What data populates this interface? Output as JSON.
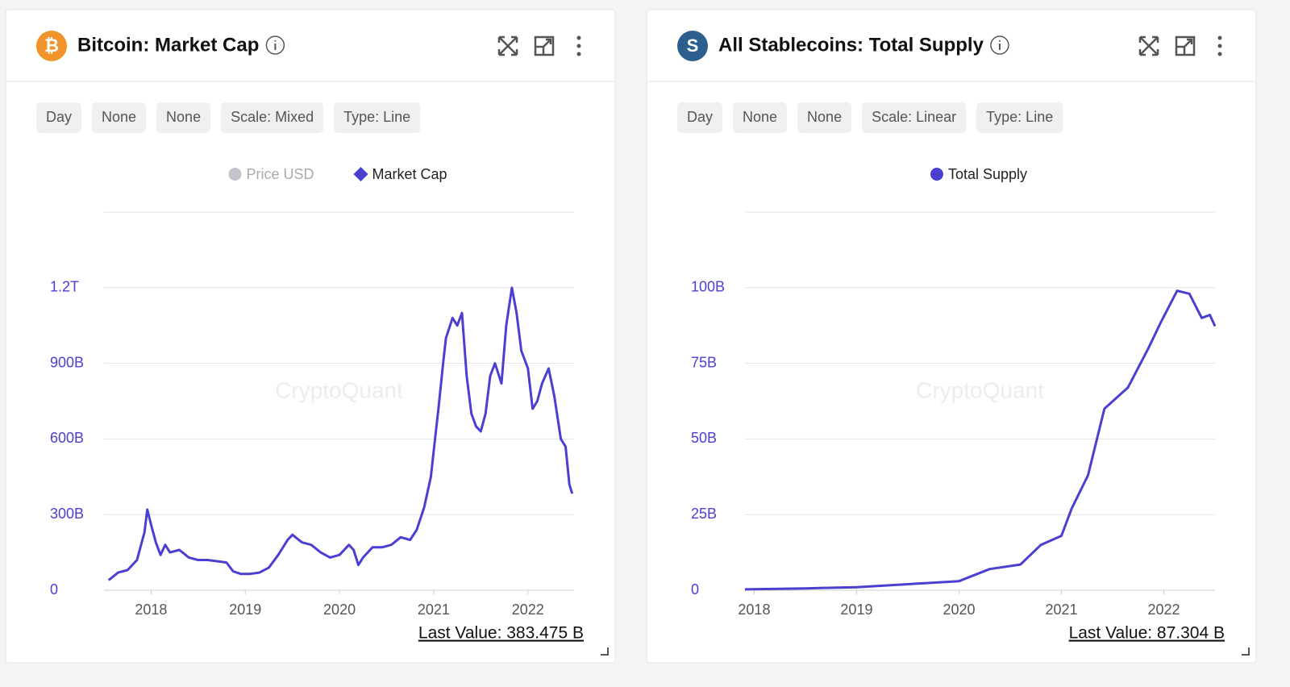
{
  "chart_data": [
    {
      "type": "line",
      "title": "Bitcoin: Market Cap",
      "icon": "₿",
      "icon_color": "#f0932b",
      "controls": [
        "Day",
        "None",
        "None",
        "Scale: Mixed",
        "Type: Line"
      ],
      "watermark": "CryptoQuant",
      "last_value": "Last Value: 383.475 B",
      "x": [
        2017.55,
        2017.65,
        2017.75,
        2017.85,
        2017.93,
        2017.96,
        2018.0,
        2018.05,
        2018.1,
        2018.15,
        2018.2,
        2018.3,
        2018.4,
        2018.5,
        2018.6,
        2018.7,
        2018.8,
        2018.87,
        2018.95,
        2019.05,
        2019.15,
        2019.25,
        2019.35,
        2019.45,
        2019.5,
        2019.6,
        2019.7,
        2019.8,
        2019.9,
        2020.0,
        2020.1,
        2020.15,
        2020.2,
        2020.25,
        2020.35,
        2020.45,
        2020.55,
        2020.65,
        2020.75,
        2020.82,
        2020.9,
        2020.97,
        2021.02,
        2021.05,
        2021.1,
        2021.13,
        2021.2,
        2021.25,
        2021.3,
        2021.35,
        2021.4,
        2021.45,
        2021.5,
        2021.55,
        2021.6,
        2021.65,
        2021.72,
        2021.77,
        2021.83,
        2021.88,
        2021.93,
        2022.0,
        2022.05,
        2022.1,
        2022.15,
        2022.22,
        2022.28,
        2022.35,
        2022.4,
        2022.44,
        2022.47
      ],
      "series": [
        {
          "name": "Price USD",
          "color": "#c4c4cc",
          "marker": "circle"
        },
        {
          "name": "Market Cap",
          "color": "#4b3fd1",
          "marker": "diamond",
          "values": [
            40,
            70,
            80,
            120,
            230,
            320,
            260,
            190,
            140,
            180,
            150,
            160,
            130,
            120,
            120,
            115,
            110,
            75,
            65,
            65,
            70,
            90,
            140,
            200,
            220,
            190,
            180,
            150,
            130,
            140,
            180,
            160,
            100,
            130,
            170,
            170,
            180,
            210,
            200,
            240,
            330,
            450,
            620,
            720,
            900,
            1000,
            1080,
            1050,
            1100,
            850,
            700,
            650,
            630,
            700,
            850,
            900,
            820,
            1050,
            1200,
            1100,
            950,
            880,
            720,
            750,
            820,
            880,
            770,
            600,
            570,
            420,
            383
          ]
        }
      ],
      "xlim": [
        2017.5,
        2022.49
      ],
      "xticks": [
        2018,
        2019,
        2020,
        2021,
        2022
      ],
      "ylim": [
        0,
        1500
      ],
      "yticks": [
        0,
        {
          "value": 300,
          "label": "300B"
        },
        {
          "value": 600,
          "label": "600B"
        },
        {
          "value": 900,
          "label": "900B"
        },
        {
          "value": 1200,
          "label": "1.2T"
        }
      ],
      "grid": true
    },
    {
      "type": "line",
      "title": "All Stablecoins: Total Supply",
      "icon": "S",
      "icon_color": "#2d5f8e",
      "controls": [
        "Day",
        "None",
        "None",
        "Scale: Linear",
        "Type: Line"
      ],
      "watermark": "CryptoQuant",
      "last_value": "Last Value: 87.304 B",
      "x": [
        2017.91,
        2018.5,
        2019.0,
        2019.5,
        2020.0,
        2020.3,
        2020.6,
        2020.8,
        2021.0,
        2021.1,
        2021.26,
        2021.42,
        2021.65,
        2021.85,
        2021.97,
        2022.13,
        2022.25,
        2022.37,
        2022.45,
        2022.5
      ],
      "series": [
        {
          "name": "Total Supply",
          "color": "#4b3fd1",
          "marker": "circle",
          "values": [
            0.3,
            0.6,
            1,
            2,
            3,
            7,
            8.5,
            15,
            18,
            27,
            38,
            60,
            67,
            80,
            88.5,
            99,
            98,
            90,
            91,
            87.3
          ]
        }
      ],
      "xlim": [
        2017.91,
        2022.5
      ],
      "xticks": [
        2018,
        2019,
        2020,
        2021,
        2022
      ],
      "ylim": [
        0,
        125
      ],
      "yticks": [
        0,
        {
          "value": 25,
          "label": "25B"
        },
        {
          "value": 50,
          "label": "50B"
        },
        {
          "value": 75,
          "label": "75B"
        },
        {
          "value": 100,
          "label": "100B"
        }
      ],
      "grid": true
    }
  ]
}
